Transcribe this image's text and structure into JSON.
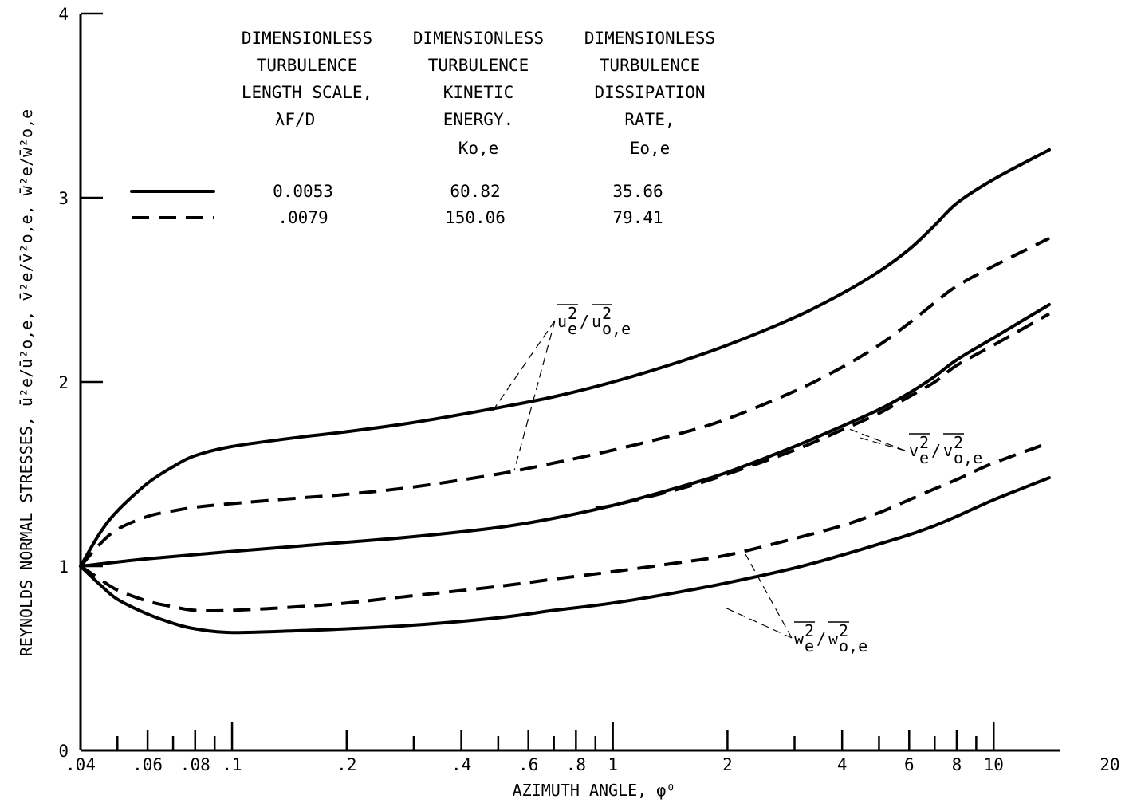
{
  "chart_data": {
    "type": "line",
    "xlabel": "AZIMUTH ANGLE, φ⁰",
    "ylabel": "REYNOLDS NORMAL STRESSES, ū²e/ū²o,e, v̄²e/v̄²o,e, w̄²e/w̄²o,e",
    "xscale": "log",
    "xlim": [
      0.04,
      20
    ],
    "ylim": [
      0,
      4
    ],
    "grid": false,
    "x_tick_labels": [
      {
        "value": 0.04,
        "label": ".04"
      },
      {
        "value": 0.06,
        "label": ".06"
      },
      {
        "value": 0.08,
        "label": ".08"
      },
      {
        "value": 0.1,
        "label": ".1"
      },
      {
        "value": 0.2,
        "label": ".2"
      },
      {
        "value": 0.4,
        "label": ".4"
      },
      {
        "value": 0.6,
        "label": ".6"
      },
      {
        "value": 0.8,
        "label": ".8"
      },
      {
        "value": 1,
        "label": "1"
      },
      {
        "value": 2,
        "label": "2"
      },
      {
        "value": 4,
        "label": "4"
      },
      {
        "value": 6,
        "label": "6"
      },
      {
        "value": 8,
        "label": "8"
      },
      {
        "value": 10,
        "label": "10"
      },
      {
        "value": 20,
        "label": "20"
      }
    ],
    "x_minor_ticks": [
      0.05,
      0.07,
      0.09,
      0.3,
      0.5,
      0.7,
      0.9,
      3,
      5,
      7,
      9
    ],
    "y_tick_labels": [
      {
        "value": 0,
        "label": "0"
      },
      {
        "value": 1,
        "label": "1"
      },
      {
        "value": 2,
        "label": "2"
      },
      {
        "value": 3,
        "label": "3"
      },
      {
        "value": 4,
        "label": "4"
      }
    ],
    "legend": {
      "headers": [
        [
          "DIMENSIONLESS",
          "TURBULENCE",
          "LENGTH SCALE,",
          "λF/D"
        ],
        [
          "DIMENSIONLESS",
          "TURBULENCE",
          "KINETIC",
          "ENERGY.",
          "Ko,e"
        ],
        [
          "DIMENSIONLESS",
          "TURBULENCE",
          "DISSIPATION",
          "RATE,",
          "Eo,e"
        ]
      ],
      "rows": [
        {
          "style": "solid",
          "values": [
            "0.0053",
            "60.82",
            "35.66"
          ]
        },
        {
          "style": "dashed",
          "values": [
            ".0079",
            "150.06",
            "79.41"
          ]
        }
      ]
    },
    "curve_labels": {
      "u": "ū²e/ū²o,e",
      "v": "v̄²e/v̄²o,e",
      "w": "w̄²e/w̄²o,e"
    },
    "series": [
      {
        "quantity": "u",
        "style": "solid",
        "x": [
          0.04,
          0.045,
          0.05,
          0.06,
          0.07,
          0.08,
          0.1,
          0.15,
          0.2,
          0.3,
          0.5,
          0.7,
          1,
          1.5,
          2,
          3,
          4,
          5,
          6,
          7,
          8,
          10,
          14
        ],
        "y": [
          1.0,
          1.18,
          1.3,
          1.45,
          1.54,
          1.6,
          1.65,
          1.7,
          1.73,
          1.78,
          1.86,
          1.92,
          2.0,
          2.11,
          2.2,
          2.35,
          2.48,
          2.6,
          2.72,
          2.85,
          2.97,
          3.1,
          3.26
        ]
      },
      {
        "quantity": "u",
        "style": "dashed",
        "x": [
          0.04,
          0.045,
          0.05,
          0.06,
          0.07,
          0.08,
          0.1,
          0.15,
          0.2,
          0.3,
          0.5,
          0.7,
          1,
          1.5,
          2,
          3,
          4,
          5,
          6,
          7,
          8,
          10,
          14
        ],
        "y": [
          1.0,
          1.12,
          1.2,
          1.27,
          1.3,
          1.32,
          1.34,
          1.37,
          1.39,
          1.43,
          1.5,
          1.56,
          1.63,
          1.72,
          1.8,
          1.95,
          2.08,
          2.2,
          2.32,
          2.43,
          2.52,
          2.63,
          2.78
        ]
      },
      {
        "quantity": "v",
        "style": "solid",
        "x": [
          0.04,
          0.06,
          0.1,
          0.2,
          0.3,
          0.5,
          0.7,
          1,
          1.5,
          2,
          3,
          4,
          5,
          6,
          7,
          8,
          10,
          14
        ],
        "y": [
          1.0,
          1.04,
          1.08,
          1.13,
          1.16,
          1.21,
          1.26,
          1.33,
          1.43,
          1.51,
          1.65,
          1.76,
          1.85,
          1.94,
          2.03,
          2.12,
          2.24,
          2.42
        ]
      },
      {
        "quantity": "v",
        "style": "dashed",
        "x": [
          0.9,
          1,
          1.5,
          2,
          3,
          4,
          5,
          6,
          7,
          8,
          10,
          14
        ],
        "y": [
          1.32,
          1.33,
          1.42,
          1.5,
          1.63,
          1.74,
          1.83,
          1.92,
          2.0,
          2.09,
          2.2,
          2.37
        ]
      },
      {
        "quantity": "w",
        "style": "solid",
        "x": [
          0.04,
          0.045,
          0.05,
          0.06,
          0.07,
          0.08,
          0.1,
          0.15,
          0.2,
          0.3,
          0.5,
          0.7,
          1,
          1.5,
          2,
          3,
          4,
          5,
          6,
          7,
          8,
          10,
          14
        ],
        "y": [
          1.0,
          0.9,
          0.82,
          0.74,
          0.69,
          0.66,
          0.64,
          0.65,
          0.66,
          0.68,
          0.72,
          0.76,
          0.8,
          0.86,
          0.91,
          0.99,
          1.06,
          1.12,
          1.17,
          1.22,
          1.27,
          1.36,
          1.48
        ]
      },
      {
        "quantity": "w",
        "style": "dashed",
        "x": [
          0.04,
          0.045,
          0.05,
          0.06,
          0.07,
          0.08,
          0.1,
          0.15,
          0.2,
          0.3,
          0.5,
          0.7,
          1,
          1.5,
          2,
          3,
          4,
          5,
          6,
          7,
          8,
          10,
          14
        ],
        "y": [
          1.0,
          0.93,
          0.87,
          0.81,
          0.78,
          0.76,
          0.76,
          0.78,
          0.8,
          0.84,
          0.89,
          0.93,
          0.97,
          1.02,
          1.06,
          1.15,
          1.22,
          1.29,
          1.36,
          1.42,
          1.47,
          1.56,
          1.67
        ]
      }
    ]
  }
}
